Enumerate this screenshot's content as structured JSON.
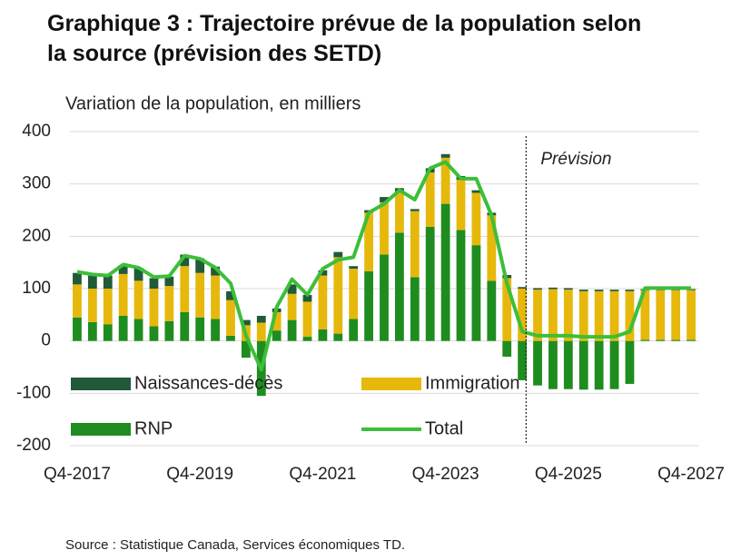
{
  "chart_data": {
    "type": "bar",
    "stacked": true,
    "title": "Graphique 3 : Trajectoire prévue de la population selon la source (prévision des SETD)",
    "subtitle": "Variation de la population, en milliers",
    "annotation": "Prévision",
    "source": "Source : Statistique Canada, Services économiques TD.",
    "categories": [
      "Q4-2017",
      null,
      null,
      null,
      null,
      null,
      null,
      null,
      "Q4-2019",
      null,
      null,
      null,
      null,
      null,
      null,
      null,
      "Q4-2021",
      null,
      null,
      null,
      null,
      null,
      null,
      null,
      "Q4-2023",
      null,
      null,
      null,
      null,
      null,
      null,
      null,
      "Q4-2025",
      null,
      null,
      null,
      null,
      null,
      null,
      null,
      "Q4-2027"
    ],
    "series": [
      {
        "name": "RNP",
        "color": "#1f8c1f",
        "values": [
          45,
          36,
          32,
          48,
          42,
          28,
          38,
          55,
          45,
          42,
          10,
          -32,
          -105,
          20,
          40,
          8,
          22,
          14,
          42,
          133,
          165,
          207,
          122,
          218,
          262,
          212,
          183,
          115,
          -30,
          -75,
          -85,
          -92,
          -92,
          -93,
          -93,
          -92,
          -82,
          2,
          2,
          2,
          2
        ]
      },
      {
        "name": "Immigration",
        "color": "#e6b80c",
        "values": [
          63,
          64,
          68,
          80,
          73,
          72,
          67,
          88,
          85,
          83,
          68,
          30,
          35,
          35,
          50,
          67,
          103,
          146,
          96,
          112,
          100,
          78,
          126,
          104,
          88,
          96,
          100,
          125,
          120,
          100,
          98,
          99,
          98,
          95,
          95,
          95,
          95,
          95,
          95,
          95,
          95
        ]
      },
      {
        "name": "Naissances-décès",
        "color": "#215a38",
        "values": [
          22,
          25,
          25,
          17,
          25,
          20,
          18,
          22,
          28,
          17,
          17,
          10,
          13,
          7,
          18,
          13,
          10,
          10,
          5,
          5,
          10,
          7,
          4,
          8,
          7,
          7,
          5,
          5,
          6,
          3,
          3,
          3,
          3,
          3,
          3,
          3,
          3,
          2,
          2,
          2,
          2
        ]
      },
      {
        "name": "Total",
        "type": "line",
        "color": "#3dbe3a",
        "values": [
          132,
          127,
          125,
          146,
          140,
          122,
          124,
          163,
          157,
          140,
          110,
          10,
          -55,
          65,
          118,
          88,
          138,
          155,
          160,
          245,
          262,
          288,
          270,
          330,
          342,
          310,
          310,
          240,
          110,
          18,
          10,
          10,
          10,
          8,
          8,
          8,
          18,
          101,
          101,
          101,
          101
        ]
      }
    ],
    "ylim": [
      -200,
      400
    ],
    "yticks": [
      -200,
      -100,
      0,
      100,
      200,
      300,
      400
    ],
    "grid": true
  }
}
